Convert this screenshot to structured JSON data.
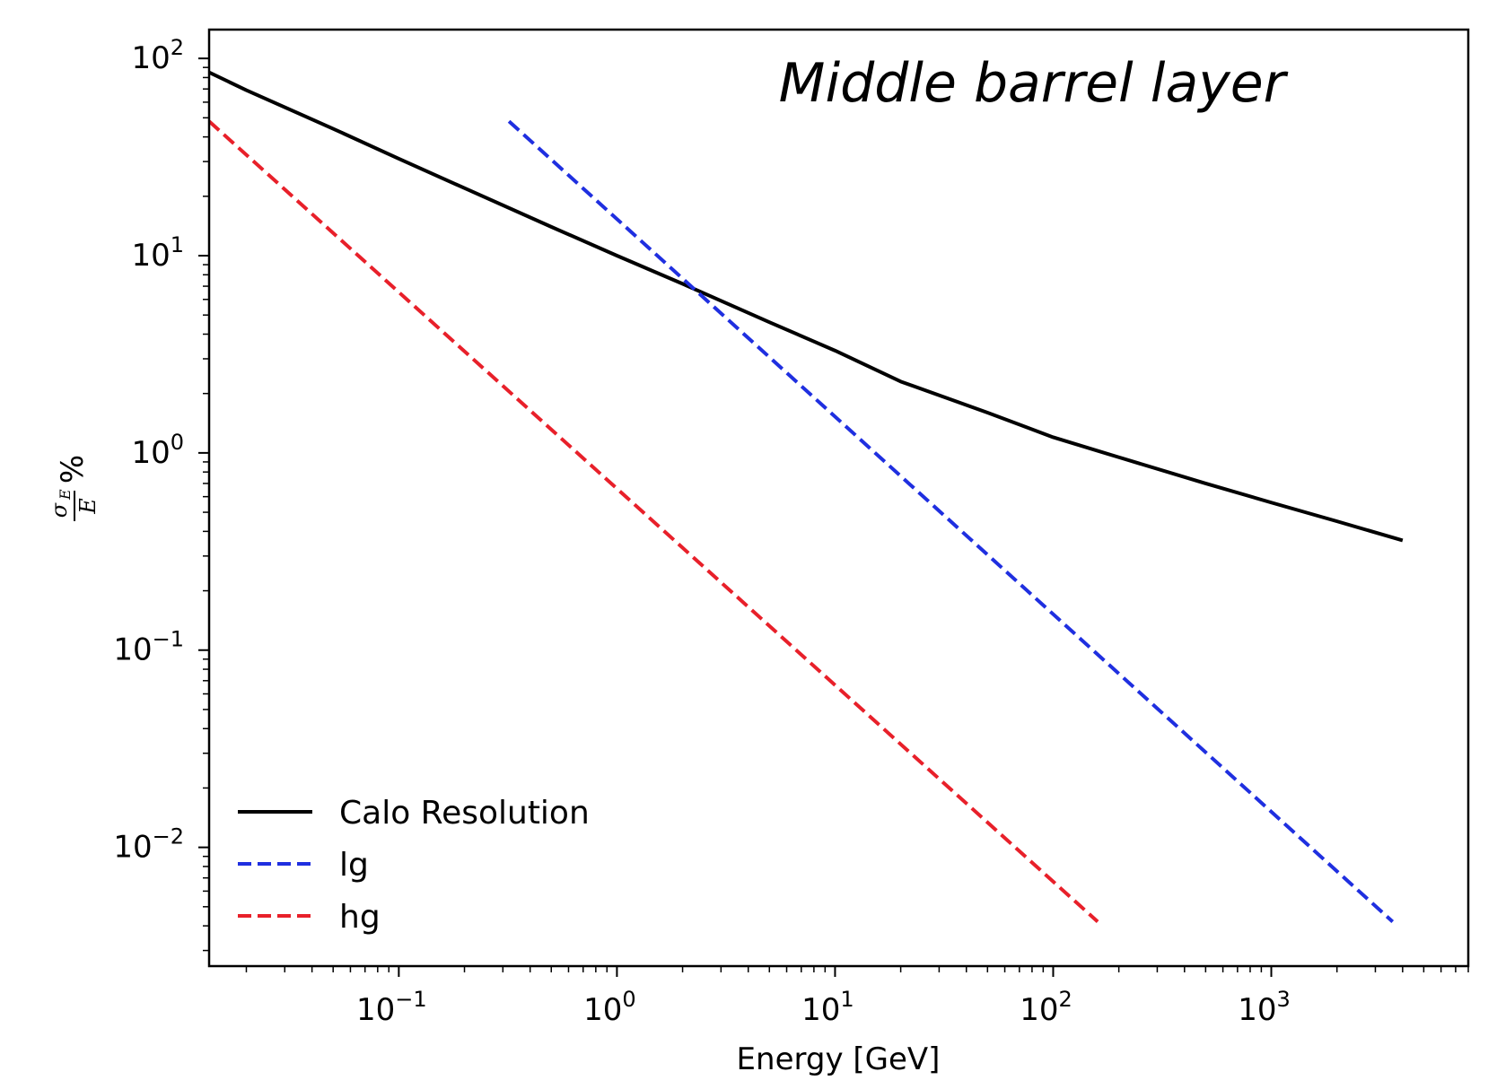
{
  "chart_data": {
    "type": "line",
    "title": "Middle barrel layer",
    "xlabel": "Energy [GeV]",
    "ylabel": {
      "numerator": "σ",
      "numerator_sub": "E",
      "denominator": "E",
      "unit": "%"
    },
    "xscale": "log",
    "yscale": "log",
    "xlim": [
      0.0135,
      8000
    ],
    "ylim": [
      0.0025,
      140
    ],
    "xticks": [
      {
        "base": "10",
        "exp": "−1",
        "value": 0.1
      },
      {
        "base": "10",
        "exp": "0",
        "value": 1
      },
      {
        "base": "10",
        "exp": "1",
        "value": 10
      },
      {
        "base": "10",
        "exp": "2",
        "value": 100
      },
      {
        "base": "10",
        "exp": "3",
        "value": 1000
      }
    ],
    "yticks": [
      {
        "base": "10",
        "exp": "2",
        "value": 100
      },
      {
        "base": "10",
        "exp": "1",
        "value": 10
      },
      {
        "base": "10",
        "exp": "0",
        "value": 1
      },
      {
        "base": "10",
        "exp": "−1",
        "value": 0.1
      },
      {
        "base": "10",
        "exp": "−2",
        "value": 0.01
      }
    ],
    "grid": false,
    "legend_position": "bottom-left",
    "series": [
      {
        "name": "Calo Resolution",
        "color": "#000000",
        "dash": "solid",
        "x": [
          0.0135,
          0.02,
          0.05,
          0.1,
          0.2,
          0.5,
          1,
          2,
          5,
          10,
          20,
          50,
          100,
          200,
          500,
          1000,
          2000,
          4000
        ],
        "y": [
          85,
          69,
          44,
          31,
          22,
          14,
          10,
          7.2,
          4.6,
          3.3,
          2.3,
          1.6,
          1.2,
          0.95,
          0.7,
          0.56,
          0.45,
          0.36
        ]
      },
      {
        "name": "lg",
        "color": "#1f2fe0",
        "dash": "dashed",
        "x": [
          0.32,
          3600
        ],
        "y": [
          48,
          0.0042
        ]
      },
      {
        "name": "hg",
        "color": "#e8202a",
        "dash": "dashed",
        "x": [
          0.0135,
          160
        ],
        "y": [
          48,
          0.0042
        ]
      }
    ]
  }
}
